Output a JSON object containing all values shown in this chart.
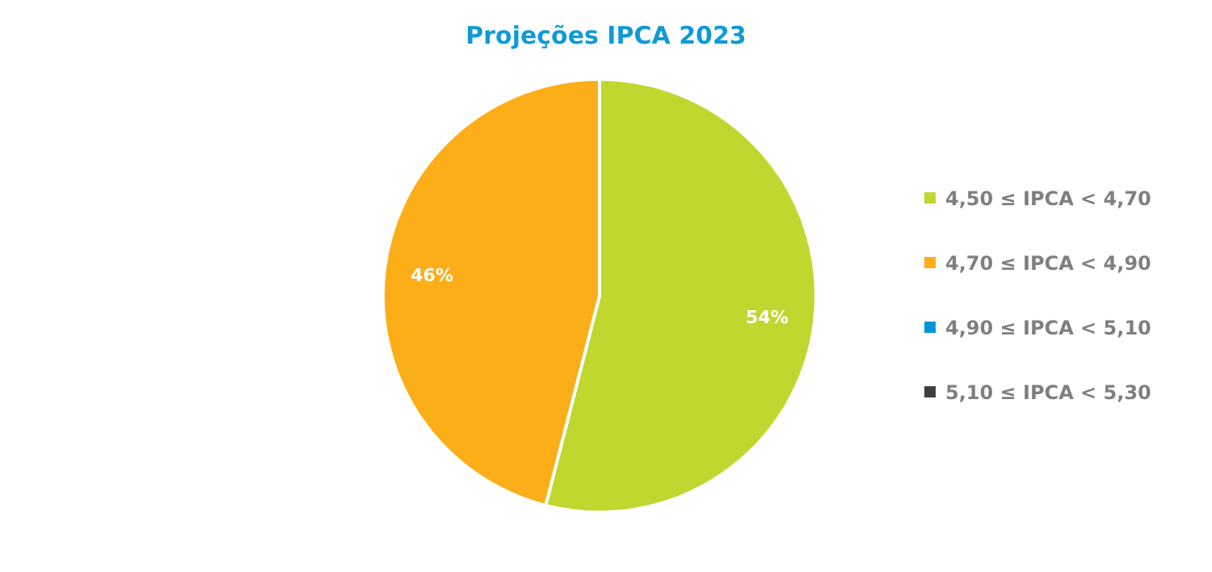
{
  "chart_data": {
    "type": "pie",
    "title": "Projeções IPCA 2023",
    "categories": [
      "4,50 ≤ IPCA < 4,70",
      "4,70 ≤ IPCA < 4,90",
      "4,90 ≤ IPCA < 5,10",
      "5,10 ≤ IPCA < 5,30"
    ],
    "values": [
      54,
      46,
      0,
      0
    ],
    "colors": [
      "#c0d72f",
      "#fbae17",
      "#0095d9",
      "#404040"
    ],
    "value_labels": [
      "54%",
      "46%",
      null,
      null
    ],
    "legend": "right"
  }
}
